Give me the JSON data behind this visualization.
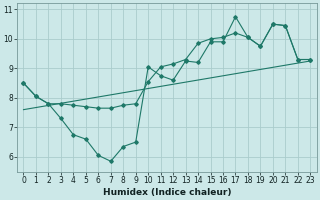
{
  "xlabel": "Humidex (Indice chaleur)",
  "xlim": [
    -0.5,
    23.5
  ],
  "ylim": [
    5.5,
    11.2
  ],
  "yticks": [
    6,
    7,
    8,
    9,
    10,
    11
  ],
  "xticks": [
    0,
    1,
    2,
    3,
    4,
    5,
    6,
    7,
    8,
    9,
    10,
    11,
    12,
    13,
    14,
    15,
    16,
    17,
    18,
    19,
    20,
    21,
    22,
    23
  ],
  "background_color": "#cce8e8",
  "line_color": "#1e7868",
  "grid_color": "#aacccc",
  "line1_y": [
    8.5,
    8.05,
    7.8,
    7.3,
    6.75,
    6.6,
    6.05,
    5.85,
    6.35,
    6.5,
    9.05,
    8.75,
    8.6,
    9.25,
    9.2,
    9.9,
    9.9,
    10.75,
    10.05,
    9.75,
    10.5,
    10.45,
    9.3,
    9.3
  ],
  "line2_y": [
    8.5,
    8.05,
    7.8,
    7.8,
    7.75,
    7.7,
    7.65,
    7.65,
    7.75,
    7.8,
    8.55,
    9.05,
    9.15,
    9.3,
    9.85,
    10.0,
    10.05,
    10.2,
    10.05,
    9.75,
    10.5,
    10.45,
    9.3,
    9.3
  ],
  "line3_x": [
    0,
    23
  ],
  "line3_y": [
    7.6,
    9.25
  ]
}
